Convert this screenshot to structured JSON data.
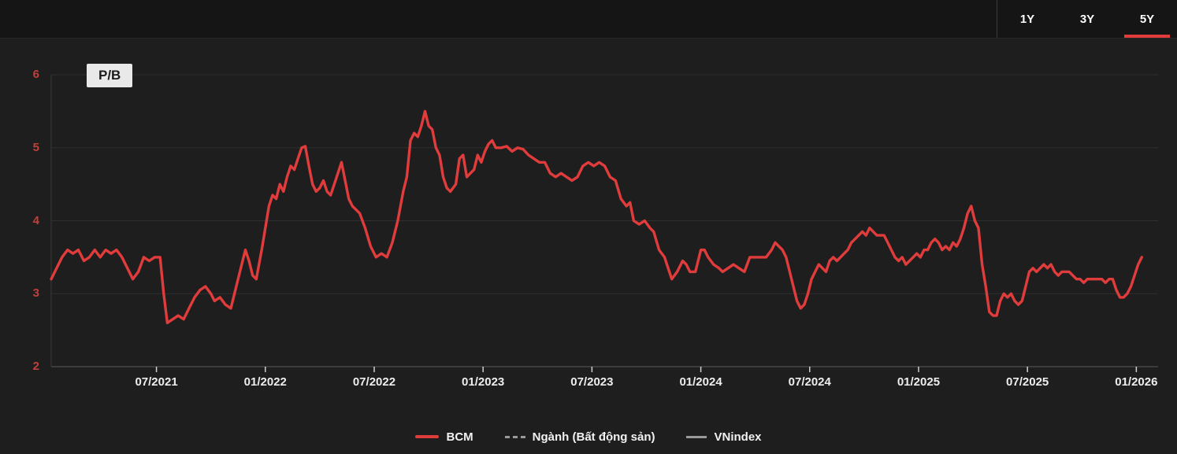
{
  "topbar": {
    "ranges": [
      {
        "label": "1Y",
        "active": false
      },
      {
        "label": "3Y",
        "active": false
      },
      {
        "label": "5Y",
        "active": true
      }
    ],
    "active_underline_color": "#e03c3c"
  },
  "chart_data": {
    "type": "line",
    "title_badge": "P/B",
    "x_unit": "months since 2021-01",
    "x_domain": [
      0,
      61
    ],
    "y_domain": [
      2,
      6
    ],
    "yticks": [
      2,
      3,
      4,
      5,
      6
    ],
    "xticks": [
      {
        "label": "07/2021",
        "t": 5.8
      },
      {
        "label": "01/2022",
        "t": 11.8
      },
      {
        "label": "07/2022",
        "t": 17.8
      },
      {
        "label": "01/2023",
        "t": 23.8
      },
      {
        "label": "07/2023",
        "t": 29.8
      },
      {
        "label": "01/2024",
        "t": 35.8
      },
      {
        "label": "07/2024",
        "t": 41.8
      },
      {
        "label": "01/2025",
        "t": 47.8
      },
      {
        "label": "07/2025",
        "t": 53.8
      },
      {
        "label": "01/2026",
        "t": 59.8
      }
    ],
    "grid": "horizontal",
    "legend_position": "bottom-center",
    "colors": {
      "bcm": "#e03c3c",
      "muted": "#9a9a9a",
      "grid": "#2f2f2f",
      "axis": "#5a5a5a",
      "tick": "#cfcfcf",
      "ylabel": "#c0403c",
      "xlabel": "#ededed"
    },
    "series": [
      {
        "name": "BCM",
        "color": "#e03c3c",
        "style": "solid",
        "points": [
          [
            0,
            3.2
          ],
          [
            0.3,
            3.35
          ],
          [
            0.6,
            3.5
          ],
          [
            0.9,
            3.6
          ],
          [
            1.2,
            3.55
          ],
          [
            1.5,
            3.6
          ],
          [
            1.8,
            3.45
          ],
          [
            2.1,
            3.5
          ],
          [
            2.4,
            3.6
          ],
          [
            2.7,
            3.5
          ],
          [
            3,
            3.6
          ],
          [
            3.3,
            3.55
          ],
          [
            3.6,
            3.6
          ],
          [
            3.9,
            3.5
          ],
          [
            4.2,
            3.35
          ],
          [
            4.5,
            3.2
          ],
          [
            4.8,
            3.3
          ],
          [
            5.1,
            3.5
          ],
          [
            5.4,
            3.45
          ],
          [
            5.7,
            3.5
          ],
          [
            6,
            3.5
          ],
          [
            6.2,
            3
          ],
          [
            6.4,
            2.6
          ],
          [
            6.7,
            2.65
          ],
          [
            7,
            2.7
          ],
          [
            7.3,
            2.65
          ],
          [
            7.6,
            2.8
          ],
          [
            7.9,
            2.95
          ],
          [
            8.2,
            3.05
          ],
          [
            8.5,
            3.1
          ],
          [
            8.8,
            3
          ],
          [
            9,
            2.9
          ],
          [
            9.3,
            2.95
          ],
          [
            9.6,
            2.85
          ],
          [
            9.9,
            2.8
          ],
          [
            10.1,
            3
          ],
          [
            10.4,
            3.3
          ],
          [
            10.7,
            3.6
          ],
          [
            10.9,
            3.45
          ],
          [
            11.1,
            3.25
          ],
          [
            11.3,
            3.2
          ],
          [
            11.6,
            3.6
          ],
          [
            11.8,
            3.9
          ],
          [
            12,
            4.2
          ],
          [
            12.2,
            4.35
          ],
          [
            12.4,
            4.3
          ],
          [
            12.6,
            4.5
          ],
          [
            12.8,
            4.4
          ],
          [
            13,
            4.6
          ],
          [
            13.2,
            4.75
          ],
          [
            13.4,
            4.7
          ],
          [
            13.6,
            4.85
          ],
          [
            13.8,
            5
          ],
          [
            14,
            5.02
          ],
          [
            14.2,
            4.75
          ],
          [
            14.4,
            4.5
          ],
          [
            14.6,
            4.4
          ],
          [
            14.8,
            4.45
          ],
          [
            15,
            4.55
          ],
          [
            15.2,
            4.4
          ],
          [
            15.4,
            4.35
          ],
          [
            15.6,
            4.5
          ],
          [
            15.8,
            4.65
          ],
          [
            16,
            4.8
          ],
          [
            16.2,
            4.55
          ],
          [
            16.4,
            4.3
          ],
          [
            16.6,
            4.2
          ],
          [
            16.8,
            4.15
          ],
          [
            17,
            4.1
          ],
          [
            17.3,
            3.9
          ],
          [
            17.6,
            3.65
          ],
          [
            17.9,
            3.5
          ],
          [
            18.2,
            3.55
          ],
          [
            18.5,
            3.5
          ],
          [
            18.8,
            3.7
          ],
          [
            19.1,
            4
          ],
          [
            19.4,
            4.4
          ],
          [
            19.6,
            4.6
          ],
          [
            19.8,
            5.1
          ],
          [
            20,
            5.2
          ],
          [
            20.2,
            5.15
          ],
          [
            20.4,
            5.3
          ],
          [
            20.6,
            5.5
          ],
          [
            20.8,
            5.3
          ],
          [
            21,
            5.25
          ],
          [
            21.2,
            5
          ],
          [
            21.4,
            4.9
          ],
          [
            21.6,
            4.6
          ],
          [
            21.8,
            4.45
          ],
          [
            22,
            4.4
          ],
          [
            22.3,
            4.5
          ],
          [
            22.5,
            4.85
          ],
          [
            22.7,
            4.9
          ],
          [
            22.9,
            4.6
          ],
          [
            23.1,
            4.65
          ],
          [
            23.3,
            4.7
          ],
          [
            23.5,
            4.9
          ],
          [
            23.7,
            4.8
          ],
          [
            23.9,
            4.95
          ],
          [
            24.1,
            5.05
          ],
          [
            24.3,
            5.1
          ],
          [
            24.5,
            5
          ],
          [
            24.8,
            5
          ],
          [
            25.1,
            5.02
          ],
          [
            25.4,
            4.95
          ],
          [
            25.7,
            5
          ],
          [
            26,
            4.98
          ],
          [
            26.3,
            4.9
          ],
          [
            26.6,
            4.85
          ],
          [
            26.9,
            4.8
          ],
          [
            27.2,
            4.8
          ],
          [
            27.5,
            4.65
          ],
          [
            27.8,
            4.6
          ],
          [
            28.1,
            4.65
          ],
          [
            28.4,
            4.6
          ],
          [
            28.7,
            4.55
          ],
          [
            29,
            4.6
          ],
          [
            29.3,
            4.75
          ],
          [
            29.6,
            4.8
          ],
          [
            29.9,
            4.75
          ],
          [
            30.2,
            4.8
          ],
          [
            30.5,
            4.75
          ],
          [
            30.8,
            4.6
          ],
          [
            31.1,
            4.55
          ],
          [
            31.4,
            4.3
          ],
          [
            31.7,
            4.2
          ],
          [
            31.9,
            4.25
          ],
          [
            32.1,
            4
          ],
          [
            32.4,
            3.95
          ],
          [
            32.7,
            4
          ],
          [
            33,
            3.9
          ],
          [
            33.2,
            3.85
          ],
          [
            33.5,
            3.6
          ],
          [
            33.8,
            3.5
          ],
          [
            34,
            3.35
          ],
          [
            34.2,
            3.2
          ],
          [
            34.5,
            3.3
          ],
          [
            34.8,
            3.45
          ],
          [
            35,
            3.4
          ],
          [
            35.2,
            3.3
          ],
          [
            35.5,
            3.3
          ],
          [
            35.8,
            3.6
          ],
          [
            36,
            3.6
          ],
          [
            36.2,
            3.5
          ],
          [
            36.5,
            3.4
          ],
          [
            36.8,
            3.35
          ],
          [
            37,
            3.3
          ],
          [
            37.3,
            3.35
          ],
          [
            37.6,
            3.4
          ],
          [
            37.9,
            3.35
          ],
          [
            38.2,
            3.3
          ],
          [
            38.5,
            3.5
          ],
          [
            38.8,
            3.5
          ],
          [
            39.1,
            3.5
          ],
          [
            39.4,
            3.5
          ],
          [
            39.7,
            3.6
          ],
          [
            39.9,
            3.7
          ],
          [
            40.1,
            3.65
          ],
          [
            40.3,
            3.6
          ],
          [
            40.5,
            3.5
          ],
          [
            40.7,
            3.3
          ],
          [
            40.9,
            3.1
          ],
          [
            41.1,
            2.9
          ],
          [
            41.3,
            2.8
          ],
          [
            41.5,
            2.85
          ],
          [
            41.7,
            3
          ],
          [
            41.9,
            3.2
          ],
          [
            42.1,
            3.3
          ],
          [
            42.3,
            3.4
          ],
          [
            42.5,
            3.35
          ],
          [
            42.7,
            3.3
          ],
          [
            42.9,
            3.45
          ],
          [
            43.1,
            3.5
          ],
          [
            43.3,
            3.45
          ],
          [
            43.5,
            3.5
          ],
          [
            43.7,
            3.55
          ],
          [
            43.9,
            3.6
          ],
          [
            44.1,
            3.7
          ],
          [
            44.3,
            3.75
          ],
          [
            44.5,
            3.8
          ],
          [
            44.7,
            3.85
          ],
          [
            44.9,
            3.8
          ],
          [
            45.1,
            3.9
          ],
          [
            45.3,
            3.85
          ],
          [
            45.5,
            3.8
          ],
          [
            45.7,
            3.8
          ],
          [
            45.9,
            3.8
          ],
          [
            46.1,
            3.7
          ],
          [
            46.3,
            3.6
          ],
          [
            46.5,
            3.5
          ],
          [
            46.7,
            3.45
          ],
          [
            46.9,
            3.5
          ],
          [
            47.1,
            3.4
          ],
          [
            47.3,
            3.45
          ],
          [
            47.5,
            3.5
          ],
          [
            47.7,
            3.55
          ],
          [
            47.9,
            3.5
          ],
          [
            48.1,
            3.6
          ],
          [
            48.3,
            3.6
          ],
          [
            48.5,
            3.7
          ],
          [
            48.7,
            3.75
          ],
          [
            48.9,
            3.7
          ],
          [
            49.1,
            3.6
          ],
          [
            49.3,
            3.65
          ],
          [
            49.5,
            3.6
          ],
          [
            49.7,
            3.7
          ],
          [
            49.9,
            3.65
          ],
          [
            50.1,
            3.75
          ],
          [
            50.3,
            3.9
          ],
          [
            50.5,
            4.1
          ],
          [
            50.7,
            4.2
          ],
          [
            50.9,
            4
          ],
          [
            51.1,
            3.9
          ],
          [
            51.3,
            3.4
          ],
          [
            51.5,
            3.1
          ],
          [
            51.7,
            2.75
          ],
          [
            51.9,
            2.7
          ],
          [
            52.1,
            2.7
          ],
          [
            52.3,
            2.9
          ],
          [
            52.5,
            3
          ],
          [
            52.7,
            2.95
          ],
          [
            52.9,
            3
          ],
          [
            53.1,
            2.9
          ],
          [
            53.3,
            2.85
          ],
          [
            53.5,
            2.9
          ],
          [
            53.7,
            3.1
          ],
          [
            53.9,
            3.3
          ],
          [
            54.1,
            3.35
          ],
          [
            54.3,
            3.3
          ],
          [
            54.5,
            3.35
          ],
          [
            54.7,
            3.4
          ],
          [
            54.9,
            3.35
          ],
          [
            55.1,
            3.4
          ],
          [
            55.3,
            3.3
          ],
          [
            55.5,
            3.25
          ],
          [
            55.7,
            3.3
          ],
          [
            55.9,
            3.3
          ],
          [
            56.1,
            3.3
          ],
          [
            56.3,
            3.25
          ],
          [
            56.5,
            3.2
          ],
          [
            56.7,
            3.2
          ],
          [
            56.9,
            3.15
          ],
          [
            57.1,
            3.2
          ],
          [
            57.3,
            3.2
          ],
          [
            57.5,
            3.2
          ],
          [
            57.7,
            3.2
          ],
          [
            57.9,
            3.2
          ],
          [
            58.1,
            3.15
          ],
          [
            58.3,
            3.2
          ],
          [
            58.5,
            3.2
          ],
          [
            58.7,
            3.05
          ],
          [
            58.9,
            2.95
          ],
          [
            59.1,
            2.95
          ],
          [
            59.3,
            3
          ],
          [
            59.5,
            3.1
          ],
          [
            59.7,
            3.25
          ],
          [
            59.9,
            3.4
          ],
          [
            60.1,
            3.5
          ]
        ]
      }
    ],
    "legend": [
      {
        "label": "BCM",
        "swatch": "line-red"
      },
      {
        "label": "Ngành (Bất động sản)",
        "swatch": "dash-gray"
      },
      {
        "label": "VNindex",
        "swatch": "line-gray"
      }
    ]
  }
}
